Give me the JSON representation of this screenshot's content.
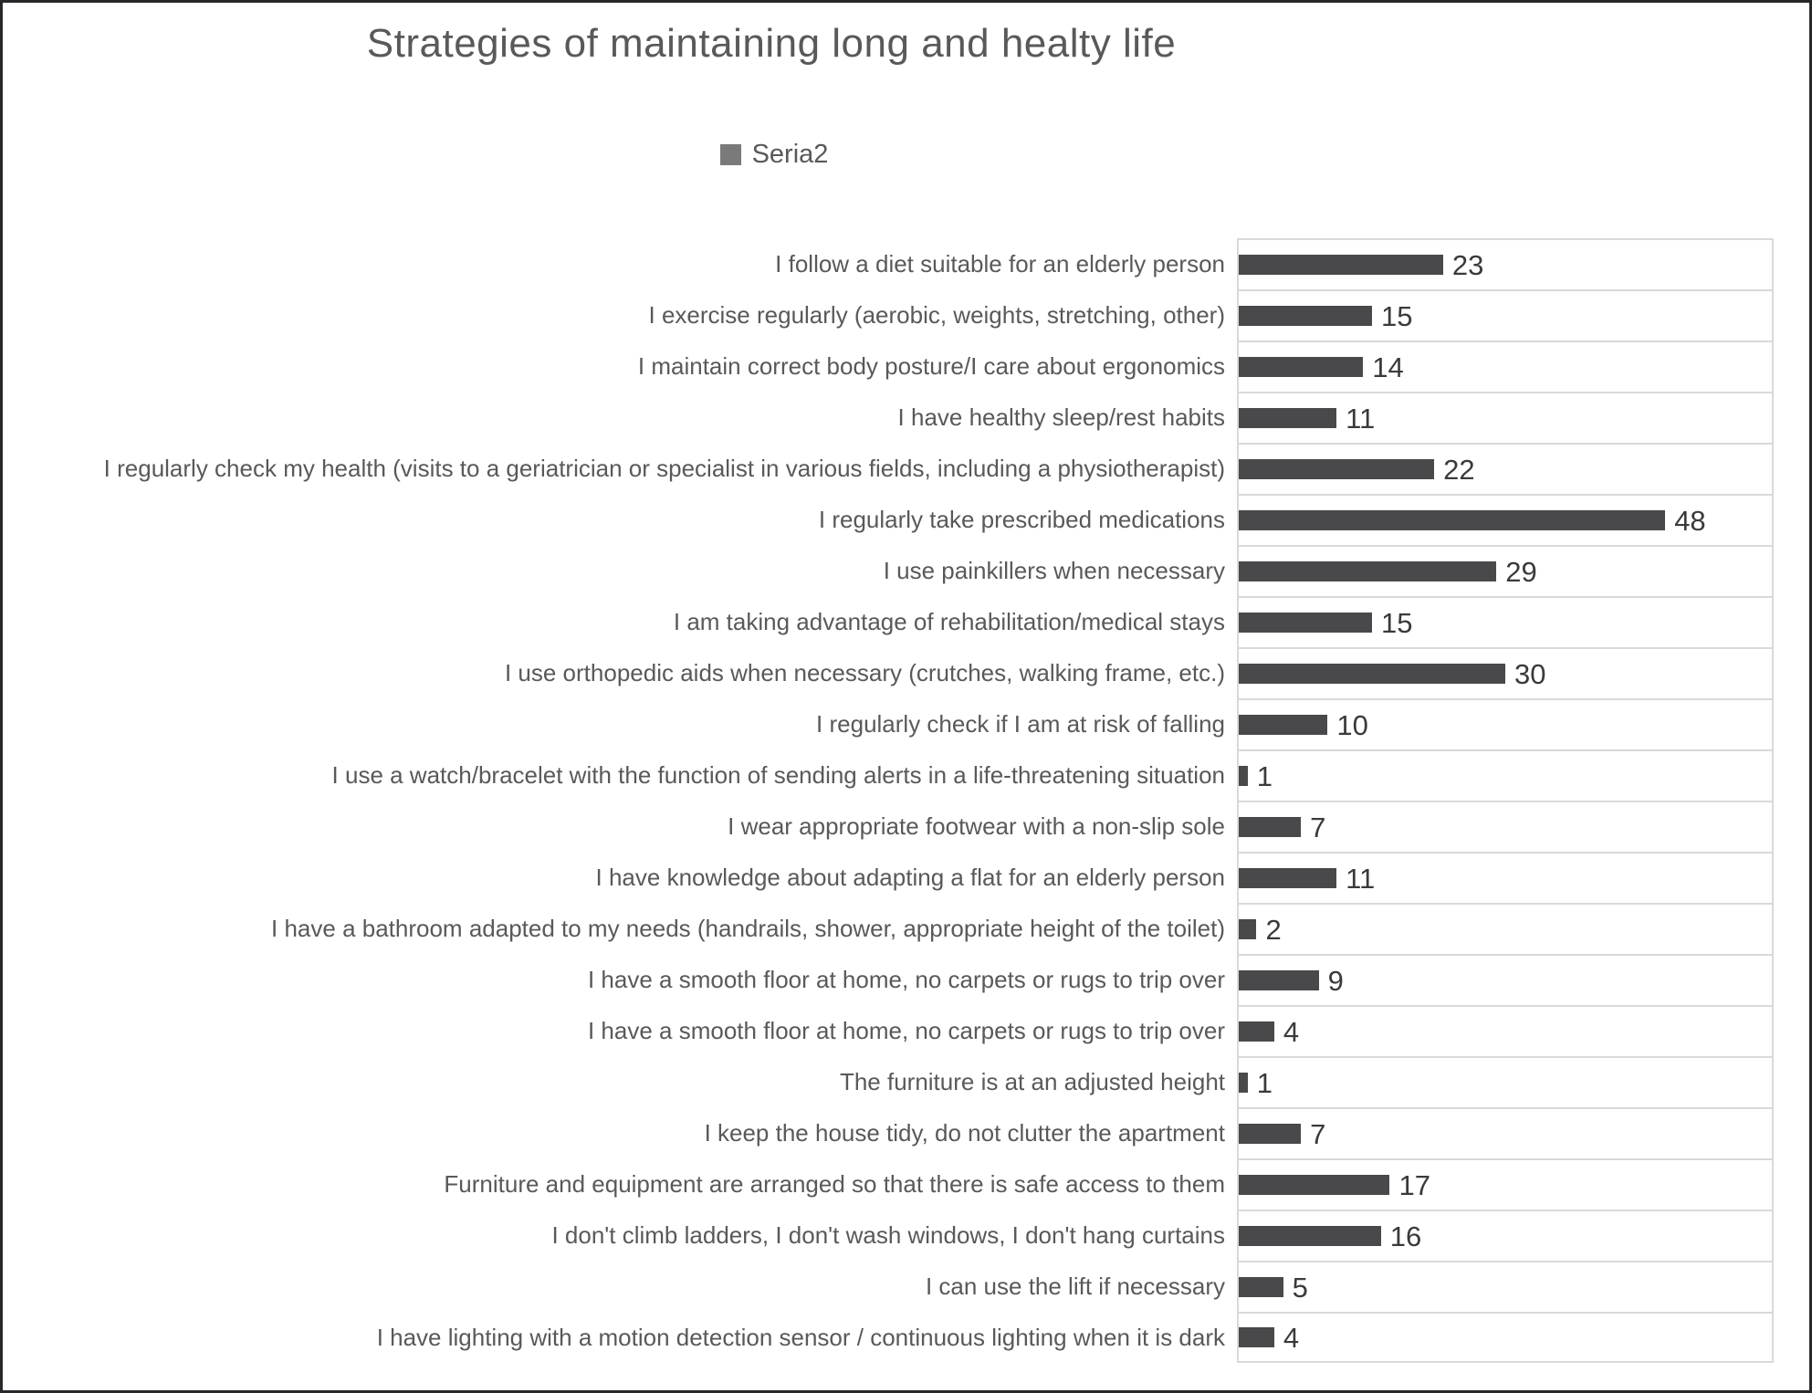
{
  "header": {
    "title": "Strategies of maintaining long and healty life"
  },
  "legend": {
    "label": "Seria2",
    "marker_color": "#7a7a7a"
  },
  "chart_data": {
    "type": "bar",
    "orientation": "horizontal",
    "title": "Strategies of maintaining long and healty life",
    "legend_entries": [
      "Seria2"
    ],
    "legend_position": "top-center",
    "categories": [
      "I follow a diet suitable for an elderly person",
      "I exercise regularly (aerobic, weights, stretching, other)",
      "I maintain correct body posture/I care about ergonomics",
      "I have healthy sleep/rest habits",
      "I regularly check my health (visits to a geriatrician or specialist in various fields, including a physiotherapist)",
      "I regularly take prescribed medications",
      "I use painkillers when necessary",
      "I am taking advantage of rehabilitation/medical stays",
      "I use orthopedic aids when necessary (crutches, walking frame, etc.)",
      "I regularly check if I am at risk of falling",
      "I use a watch/bracelet with the function of sending alerts in a life-threatening situation",
      "I wear appropriate footwear with a non-slip sole",
      "I have knowledge about adapting a flat for an elderly person",
      "I have a bathroom adapted to my needs (handrails, shower, appropriate height of the toilet)",
      "I have a smooth floor at home, no carpets or rugs to trip over",
      "I have a smooth floor at home, no carpets or rugs to trip over",
      "The furniture is at an adjusted height",
      "I keep the house tidy, do not clutter the apartment",
      "Furniture and equipment are arranged so that there is safe access to them",
      "I don't climb ladders, I don't wash windows, I don't hang curtains",
      "I can use the lift if necessary",
      "I have lighting with a motion detection sensor / continuous lighting when it is dark"
    ],
    "values": [
      23,
      15,
      14,
      11,
      22,
      48,
      29,
      15,
      30,
      10,
      1,
      7,
      11,
      2,
      9,
      4,
      1,
      7,
      17,
      16,
      5,
      4
    ],
    "value_labels_shown": true,
    "xlabel": "",
    "ylabel": "",
    "xlim": [
      0,
      60
    ],
    "grid": "horizontal category separators only",
    "bar_color": "#49494b",
    "gridline_color": "#d9d9d9",
    "title_color": "#595959",
    "label_color": "#595959",
    "value_color": "#3a3a3a"
  }
}
